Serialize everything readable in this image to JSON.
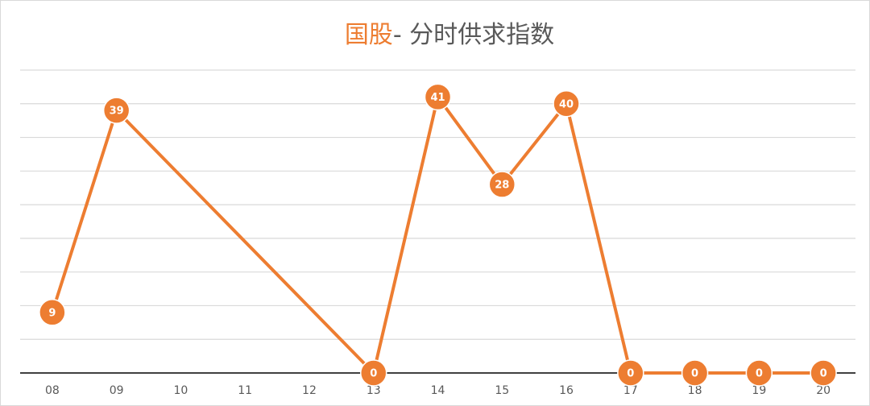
{
  "chart_data": {
    "type": "line",
    "title": [
      {
        "text": "国股",
        "color": "#ed7d31"
      },
      {
        "text": "- 分时供求指数",
        "color": "#595959"
      }
    ],
    "series": [
      {
        "color": "#ed7d31",
        "x": [
          8,
          9,
          13,
          14,
          15,
          16,
          17,
          18,
          19,
          20
        ],
        "values": [
          9,
          39,
          0,
          41,
          28,
          40,
          0,
          0,
          0,
          0
        ]
      }
    ],
    "xlim": [
      7.5,
      20.5
    ],
    "xticks": [
      {
        "value": 8,
        "label": "08"
      },
      {
        "value": 9,
        "label": "09"
      },
      10,
      11,
      12,
      13,
      14,
      15,
      16,
      17,
      18,
      19,
      20
    ],
    "ylim": [
      0,
      45
    ],
    "yticks": [
      0,
      5,
      10,
      15,
      20,
      25,
      30,
      35,
      40,
      45
    ],
    "grid": true
  }
}
